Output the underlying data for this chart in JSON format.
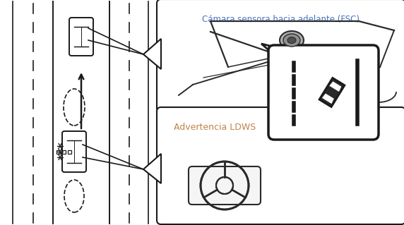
{
  "box1_label": "Cámara sensora hacia adelante (FSC)",
  "box2_label": "Advertencia LDWS",
  "box1_label_color": "#4472c4",
  "box2_label_color": "#c0834a",
  "bg_color": "#ffffff",
  "line_color": "#1a1a1a"
}
